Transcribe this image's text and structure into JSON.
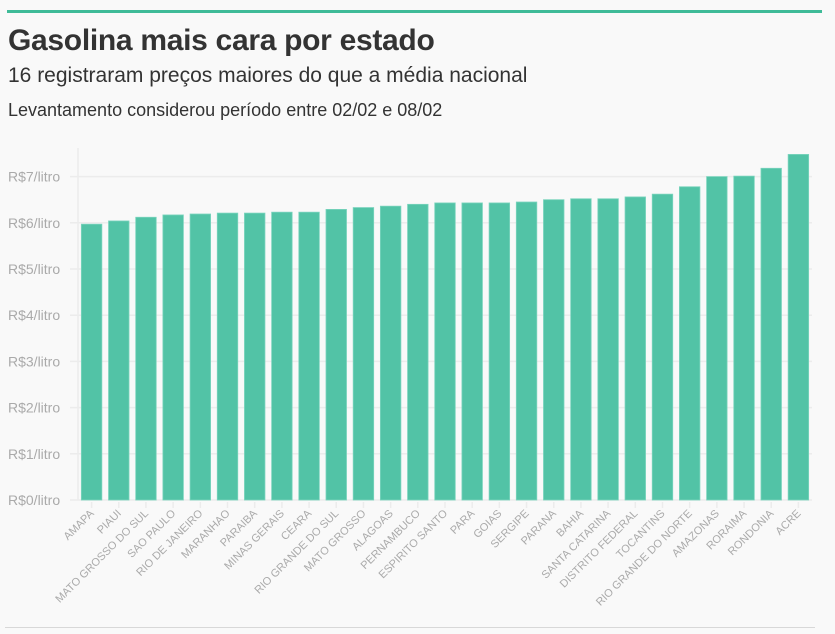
{
  "header": {
    "title": "Gasolina mais cara por estado",
    "subtitle": "16 registraram preços maiores do que a média nacional",
    "note": "Levantamento considerou período entre 02/02 e 08/02"
  },
  "colors": {
    "accent": "#3fbb98",
    "bar": "#52c3a6",
    "grid": "#ececec",
    "tick_text": "#aaaaaa"
  },
  "chart_data": {
    "type": "bar",
    "title": "Gasolina mais cara por estado",
    "subtitle": "16 registraram preços maiores do que a média nacional",
    "xlabel": "",
    "ylabel": "",
    "ylim": [
      0,
      7.5
    ],
    "grid": true,
    "y_ticks": [
      {
        "value": 0,
        "label": "R$0/litro"
      },
      {
        "value": 1,
        "label": "R$1/litro"
      },
      {
        "value": 2,
        "label": "R$2/litro"
      },
      {
        "value": 3,
        "label": "R$3/litro"
      },
      {
        "value": 4,
        "label": "R$4/litro"
      },
      {
        "value": 5,
        "label": "R$5/litro"
      },
      {
        "value": 6,
        "label": "R$6/litro"
      },
      {
        "value": 7,
        "label": "R$7/litro"
      }
    ],
    "categories": [
      "AMAPA",
      "PIAUI",
      "MATO GROSSO DO SUL",
      "SAO PAULO",
      "RIO DE JANEIRO",
      "MARANHAO",
      "PARAIBA",
      "MINAS GERAIS",
      "CEARA",
      "RIO GRANDE DO SUL",
      "MATO GROSSO",
      "ALAGOAS",
      "PERNAMBUCO",
      "ESPIRITO SANTO",
      "PARA",
      "GOIAS",
      "SERGIPE",
      "PARANA",
      "BAHIA",
      "SANTA CATARINA",
      "DISTRITO FEDERAL",
      "TOCANTINS",
      "RIO GRANDE DO NORTE",
      "AMAZONAS",
      "RORAIMA",
      "RONDONIA",
      "ACRE"
    ],
    "values": [
      5.97,
      6.04,
      6.12,
      6.17,
      6.19,
      6.21,
      6.21,
      6.23,
      6.23,
      6.29,
      6.33,
      6.36,
      6.4,
      6.43,
      6.43,
      6.43,
      6.45,
      6.5,
      6.52,
      6.52,
      6.56,
      6.62,
      6.78,
      7.0,
      7.01,
      7.18,
      7.48
    ]
  }
}
